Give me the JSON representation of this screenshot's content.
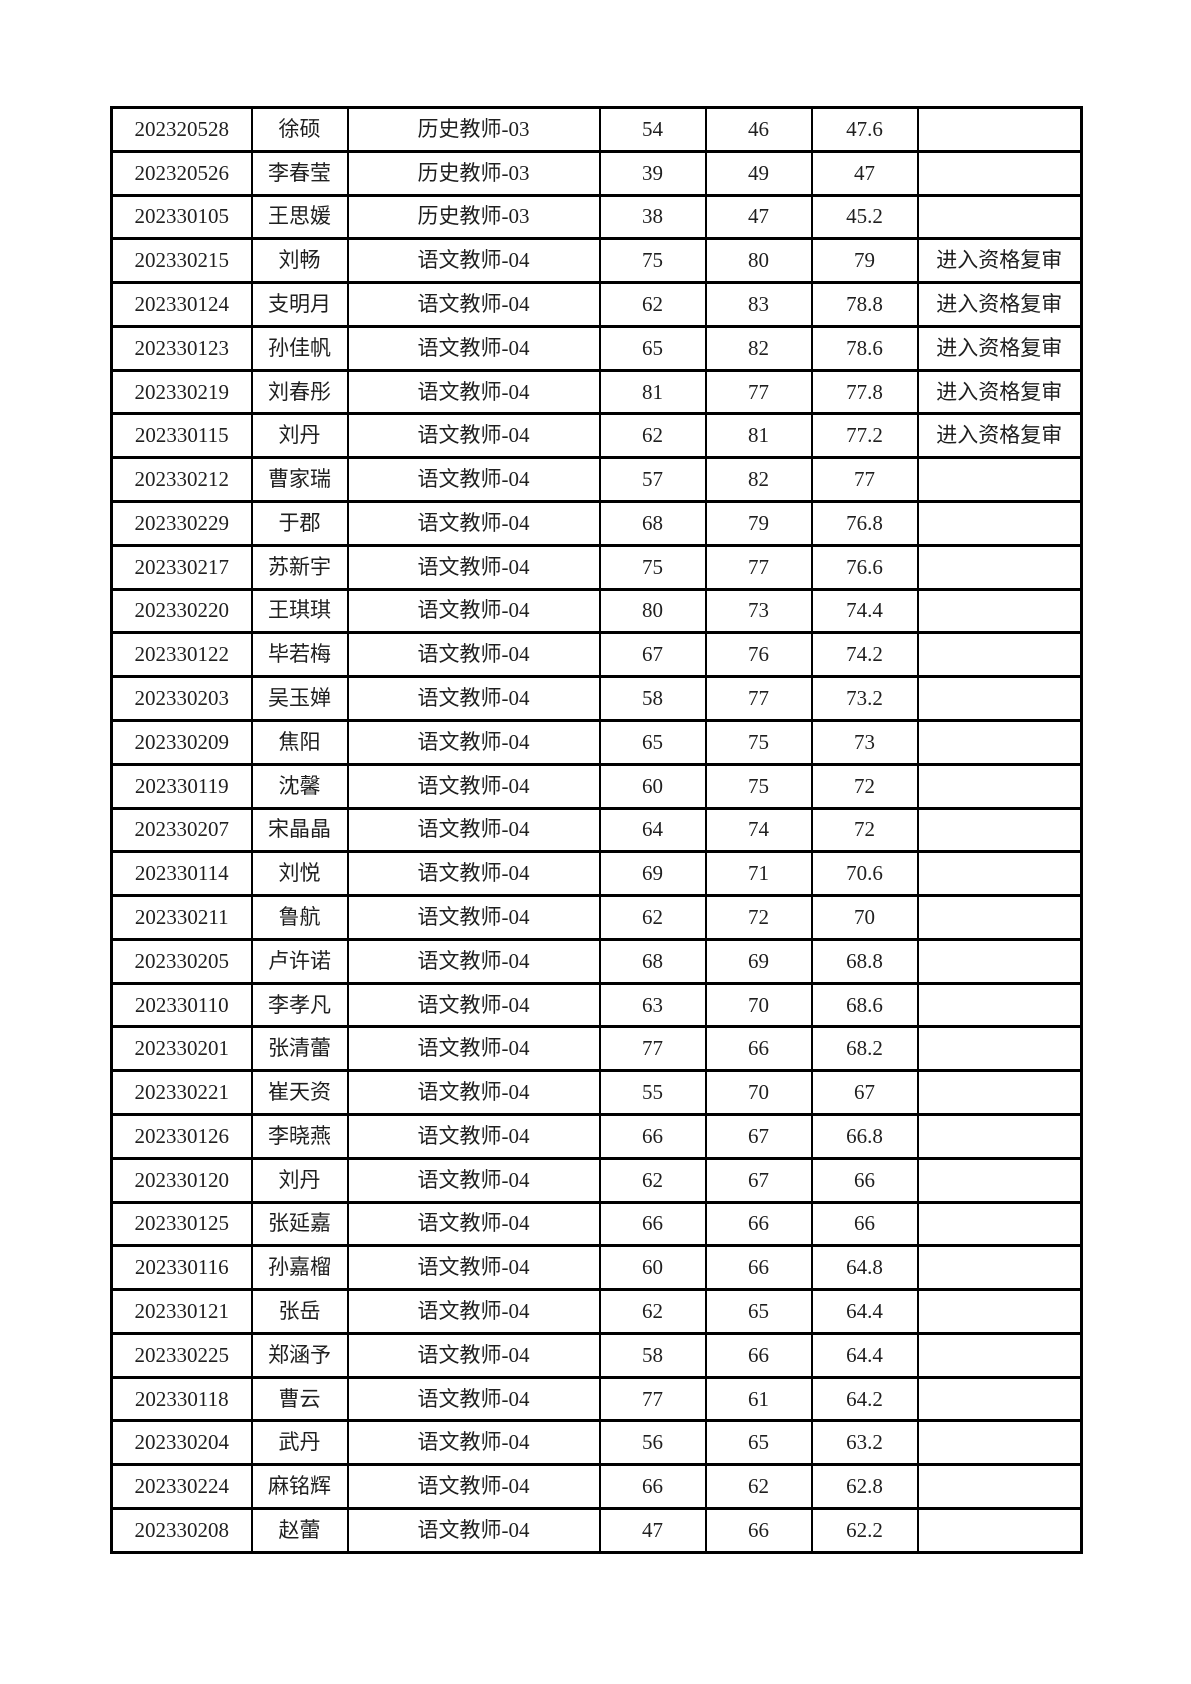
{
  "document": {
    "kind": "recruitment-score-list-page",
    "remark_pass_label": "进入资格复审",
    "positions_seen": [
      "历史教师-03",
      "语文教师-04"
    ]
  },
  "table": {
    "column_keys": [
      "id",
      "name",
      "position",
      "score1",
      "score2",
      "final_score",
      "remark"
    ],
    "rows": [
      [
        "202320528",
        "徐硕",
        "历史教师-03",
        "54",
        "46",
        "47.6",
        ""
      ],
      [
        "202320526",
        "李春莹",
        "历史教师-03",
        "39",
        "49",
        "47",
        ""
      ],
      [
        "202330105",
        "王思媛",
        "历史教师-03",
        "38",
        "47",
        "45.2",
        ""
      ],
      [
        "202330215",
        "刘畅",
        "语文教师-04",
        "75",
        "80",
        "79",
        "进入资格复审"
      ],
      [
        "202330124",
        "支明月",
        "语文教师-04",
        "62",
        "83",
        "78.8",
        "进入资格复审"
      ],
      [
        "202330123",
        "孙佳帆",
        "语文教师-04",
        "65",
        "82",
        "78.6",
        "进入资格复审"
      ],
      [
        "202330219",
        "刘春彤",
        "语文教师-04",
        "81",
        "77",
        "77.8",
        "进入资格复审"
      ],
      [
        "202330115",
        "刘丹",
        "语文教师-04",
        "62",
        "81",
        "77.2",
        "进入资格复审"
      ],
      [
        "202330212",
        "曹家瑞",
        "语文教师-04",
        "57",
        "82",
        "77",
        ""
      ],
      [
        "202330229",
        "于郡",
        "语文教师-04",
        "68",
        "79",
        "76.8",
        ""
      ],
      [
        "202330217",
        "苏新宇",
        "语文教师-04",
        "75",
        "77",
        "76.6",
        ""
      ],
      [
        "202330220",
        "王琪琪",
        "语文教师-04",
        "80",
        "73",
        "74.4",
        ""
      ],
      [
        "202330122",
        "毕若梅",
        "语文教师-04",
        "67",
        "76",
        "74.2",
        ""
      ],
      [
        "202330203",
        "吴玉婵",
        "语文教师-04",
        "58",
        "77",
        "73.2",
        ""
      ],
      [
        "202330209",
        "焦阳",
        "语文教师-04",
        "65",
        "75",
        "73",
        ""
      ],
      [
        "202330119",
        "沈馨",
        "语文教师-04",
        "60",
        "75",
        "72",
        ""
      ],
      [
        "202330207",
        "宋晶晶",
        "语文教师-04",
        "64",
        "74",
        "72",
        ""
      ],
      [
        "202330114",
        "刘悦",
        "语文教师-04",
        "69",
        "71",
        "70.6",
        ""
      ],
      [
        "202330211",
        "鲁航",
        "语文教师-04",
        "62",
        "72",
        "70",
        ""
      ],
      [
        "202330205",
        "卢许诺",
        "语文教师-04",
        "68",
        "69",
        "68.8",
        ""
      ],
      [
        "202330110",
        "李孝凡",
        "语文教师-04",
        "63",
        "70",
        "68.6",
        ""
      ],
      [
        "202330201",
        "张清蕾",
        "语文教师-04",
        "77",
        "66",
        "68.2",
        ""
      ],
      [
        "202330221",
        "崔天资",
        "语文教师-04",
        "55",
        "70",
        "67",
        ""
      ],
      [
        "202330126",
        "李晓燕",
        "语文教师-04",
        "66",
        "67",
        "66.8",
        ""
      ],
      [
        "202330120",
        "刘丹",
        "语文教师-04",
        "62",
        "67",
        "66",
        ""
      ],
      [
        "202330125",
        "张延嘉",
        "语文教师-04",
        "66",
        "66",
        "66",
        ""
      ],
      [
        "202330116",
        "孙嘉榴",
        "语文教师-04",
        "60",
        "66",
        "64.8",
        ""
      ],
      [
        "202330121",
        "张岳",
        "语文教师-04",
        "62",
        "65",
        "64.4",
        ""
      ],
      [
        "202330225",
        "郑涵予",
        "语文教师-04",
        "58",
        "66",
        "64.4",
        ""
      ],
      [
        "202330118",
        "曹云",
        "语文教师-04",
        "77",
        "61",
        "64.2",
        ""
      ],
      [
        "202330204",
        "武丹",
        "语文教师-04",
        "56",
        "65",
        "63.2",
        ""
      ],
      [
        "202330224",
        "麻铭辉",
        "语文教师-04",
        "66",
        "62",
        "62.8",
        ""
      ],
      [
        "202330208",
        "赵蕾",
        "语文教师-04",
        "47",
        "66",
        "62.2",
        ""
      ]
    ]
  }
}
